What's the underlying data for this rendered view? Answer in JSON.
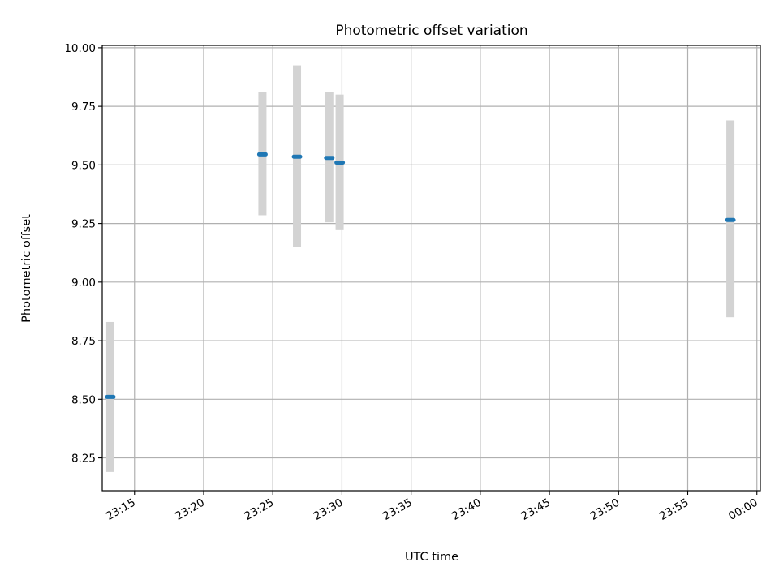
{
  "chart_data": {
    "type": "scatter",
    "title": "Photometric offset variation",
    "xlabel": "UTC time",
    "ylabel": "Photometric offset",
    "x_axis": {
      "kind": "time",
      "ticks": [
        "23:15",
        "23:20",
        "23:25",
        "23:30",
        "23:35",
        "23:40",
        "23:45",
        "23:50",
        "23:55",
        "00:00"
      ],
      "range": [
        "23:12:40",
        "00:00:15"
      ]
    },
    "y_axis": {
      "ticks": [
        "8.25",
        "8.50",
        "8.75",
        "9.00",
        "9.25",
        "9.50",
        "9.75",
        "10.00"
      ],
      "range": [
        8.11,
        10.01
      ]
    },
    "grid": true,
    "colors": {
      "marker": "#1f77b4",
      "errorbar": "#d3d3d3",
      "grid": "#b0b0b0"
    },
    "points": [
      {
        "x": "23:13:15",
        "y": 8.51,
        "yerr_low": 8.19,
        "yerr_high": 8.83
      },
      {
        "x": "23:24:15",
        "y": 9.545,
        "yerr_low": 9.285,
        "yerr_high": 9.81
      },
      {
        "x": "23:26:45",
        "y": 9.535,
        "yerr_low": 9.15,
        "yerr_high": 9.925
      },
      {
        "x": "23:29:05",
        "y": 9.53,
        "yerr_low": 9.255,
        "yerr_high": 9.81
      },
      {
        "x": "23:29:50",
        "y": 9.51,
        "yerr_low": 9.225,
        "yerr_high": 9.8
      },
      {
        "x": "23:58:05",
        "y": 9.265,
        "yerr_low": 8.85,
        "yerr_high": 9.69
      }
    ]
  }
}
